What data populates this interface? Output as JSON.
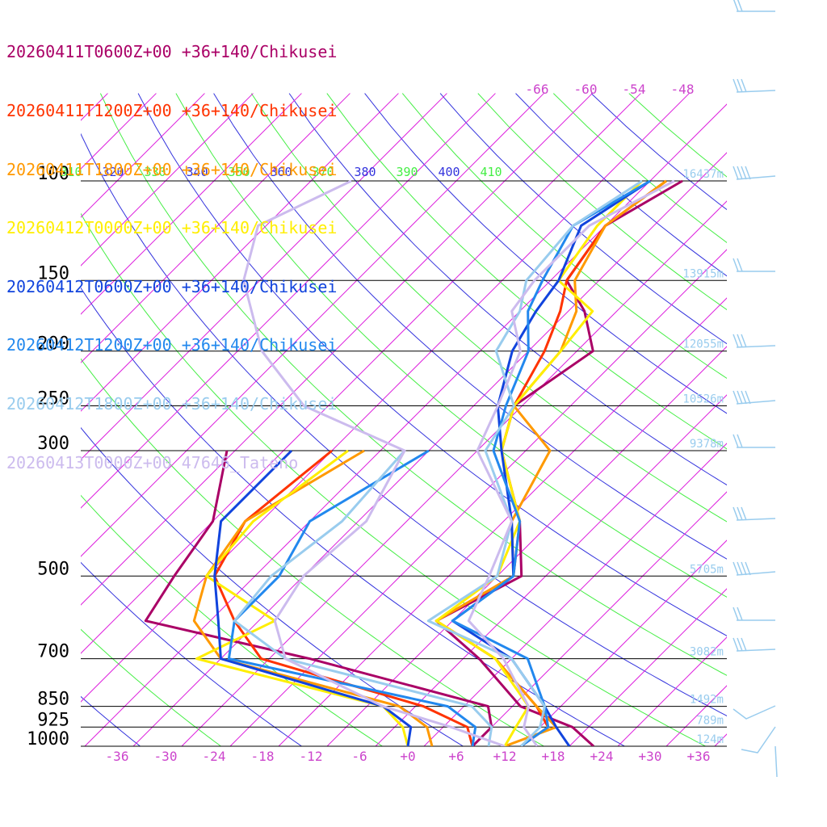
{
  "chart_data": {
    "type": "line",
    "title": "",
    "xlabel": "",
    "ylabel": "",
    "ylim": [
      1000,
      100
    ],
    "xlim": [
      -40,
      40
    ],
    "y_log_scale": true,
    "pressure_ticks": [
      "100",
      "150",
      "200",
      "250",
      "300",
      "500",
      "700",
      "850",
      "925",
      "1000"
    ],
    "temp_ticks": [
      "-36",
      "-30",
      "-24",
      "-18",
      "-12",
      "-6",
      "+0",
      "+6",
      "+12",
      "+18",
      "+24",
      "+30",
      "+36"
    ],
    "height_labels": [
      {
        "p": 100,
        "label": "16437m"
      },
      {
        "p": 150,
        "label": "13915m"
      },
      {
        "p": 200,
        "label": "12055m"
      },
      {
        "p": 250,
        "label": "10526m"
      },
      {
        "p": 300,
        "label": "9378m"
      },
      {
        "p": 500,
        "label": "5705m"
      },
      {
        "p": 700,
        "label": "3082m"
      },
      {
        "p": 850,
        "label": "1492m"
      },
      {
        "p": 925,
        "label": "789m"
      },
      {
        "p": 1000,
        "label": "124m"
      }
    ],
    "isotherm_labels": [
      "-66",
      "-60",
      "-54",
      "-48"
    ],
    "theta_labels": [
      "310",
      "320",
      "330",
      "340",
      "350",
      "360",
      "370",
      "380",
      "390",
      "400",
      "410"
    ],
    "series": [
      {
        "name": "20260411T0600Z+00 +36+140/Chikusei",
        "color": "#aa0066",
        "temperature": [
          [
            1000,
            23
          ],
          [
            925,
            18
          ],
          [
            850,
            9
          ],
          [
            700,
            -2
          ],
          [
            600,
            -12
          ],
          [
            500,
            -7
          ],
          [
            400,
            -14
          ],
          [
            300,
            -25
          ],
          [
            250,
            -29
          ],
          [
            200,
            -26
          ],
          [
            170,
            -32
          ],
          [
            150,
            -38
          ],
          [
            120,
            -40
          ],
          [
            100,
            -36
          ]
        ],
        "dewpoint": [
          [
            1000,
            8
          ],
          [
            925,
            8
          ],
          [
            850,
            5
          ],
          [
            700,
            -23
          ],
          [
            600,
            -48
          ],
          [
            500,
            -50
          ],
          [
            400,
            -52
          ],
          [
            300,
            -59
          ]
        ]
      },
      {
        "name": "20260411T1200Z+00 +36+140/Chikusei",
        "color": "#ff3300",
        "temperature": [
          [
            1000,
            14
          ],
          [
            925,
            15
          ],
          [
            850,
            11
          ],
          [
            700,
            0
          ],
          [
            600,
            -12
          ],
          [
            500,
            -8
          ],
          [
            400,
            -14
          ],
          [
            300,
            -25
          ],
          [
            250,
            -29
          ],
          [
            200,
            -32
          ],
          [
            170,
            -35
          ],
          [
            150,
            -38
          ],
          [
            120,
            -40
          ],
          [
            100,
            -38
          ]
        ],
        "dewpoint": [
          [
            1000,
            8
          ],
          [
            925,
            5
          ],
          [
            850,
            -3
          ],
          [
            700,
            -29
          ],
          [
            600,
            -37
          ],
          [
            500,
            -45
          ],
          [
            400,
            -48
          ],
          [
            300,
            -46
          ]
        ]
      },
      {
        "name": "20260411T1800Z+00 +36+140/Chikusei",
        "color": "#ff9900",
        "temperature": [
          [
            1000,
            12
          ],
          [
            925,
            16
          ],
          [
            850,
            11
          ],
          [
            700,
            0
          ],
          [
            600,
            -12
          ],
          [
            500,
            -8
          ],
          [
            400,
            -15
          ],
          [
            300,
            -19
          ],
          [
            250,
            -29
          ],
          [
            200,
            -30
          ],
          [
            170,
            -33
          ],
          [
            150,
            -37
          ],
          [
            120,
            -40
          ],
          [
            100,
            -38
          ]
        ],
        "dewpoint": [
          [
            1000,
            3
          ],
          [
            925,
            0
          ],
          [
            850,
            -6
          ],
          [
            700,
            -34
          ],
          [
            600,
            -42
          ],
          [
            500,
            -46
          ],
          [
            400,
            -48
          ],
          [
            300,
            -42
          ]
        ]
      },
      {
        "name": "20260412T0000Z+00 +36+140/Chikusei",
        "color": "#ffee00",
        "temperature": [
          [
            1000,
            12
          ],
          [
            925,
            11
          ],
          [
            850,
            10
          ],
          [
            700,
            0
          ],
          [
            600,
            -12
          ],
          [
            500,
            -10
          ],
          [
            400,
            -14
          ],
          [
            300,
            -25
          ],
          [
            250,
            -29
          ],
          [
            200,
            -30
          ],
          [
            170,
            -31
          ],
          [
            150,
            -39
          ],
          [
            120,
            -41
          ],
          [
            100,
            -41
          ]
        ],
        "dewpoint": [
          [
            1000,
            0
          ],
          [
            925,
            -3
          ],
          [
            850,
            -8
          ],
          [
            700,
            -37
          ],
          [
            600,
            -32
          ],
          [
            500,
            -46
          ],
          [
            400,
            -47
          ],
          [
            300,
            -44
          ]
        ]
      },
      {
        "name": "20260412T0600Z+00 +36+140/Chikusei",
        "color": "#1144dd",
        "temperature": [
          [
            1000,
            20
          ],
          [
            925,
            16
          ],
          [
            850,
            12
          ],
          [
            700,
            2
          ],
          [
            600,
            -10
          ],
          [
            500,
            -8
          ],
          [
            400,
            -15
          ],
          [
            300,
            -25
          ],
          [
            250,
            -31
          ],
          [
            200,
            -36
          ],
          [
            170,
            -38
          ],
          [
            150,
            -39
          ],
          [
            120,
            -43
          ],
          [
            100,
            -40
          ]
        ],
        "dewpoint": [
          [
            1000,
            0
          ],
          [
            925,
            -2
          ],
          [
            850,
            -8
          ],
          [
            700,
            -34
          ],
          [
            600,
            -39
          ],
          [
            500,
            -45
          ],
          [
            400,
            -51
          ],
          [
            300,
            -51
          ]
        ]
      },
      {
        "name": "20260412T1200Z+00 +36+140/Chikusei",
        "color": "#2288ee",
        "temperature": [
          [
            1000,
            14
          ],
          [
            925,
            15
          ],
          [
            850,
            12
          ],
          [
            700,
            4
          ],
          [
            600,
            -10
          ],
          [
            500,
            -8
          ],
          [
            400,
            -14
          ],
          [
            300,
            -26
          ],
          [
            250,
            -30
          ],
          [
            200,
            -34
          ],
          [
            170,
            -39
          ],
          [
            150,
            -41
          ],
          [
            120,
            -44
          ],
          [
            100,
            -40
          ]
        ],
        "dewpoint": [
          [
            1000,
            8
          ],
          [
            925,
            6
          ],
          [
            850,
            0
          ],
          [
            700,
            -33
          ],
          [
            600,
            -37
          ],
          [
            500,
            -37
          ],
          [
            400,
            -40
          ],
          [
            300,
            -34
          ]
        ]
      },
      {
        "name": "20260412T1800Z+00 +36+140/Chikusei",
        "color": "#99ccee",
        "temperature": [
          [
            1000,
            14
          ],
          [
            925,
            14
          ],
          [
            850,
            12
          ],
          [
            700,
            2
          ],
          [
            600,
            -13
          ],
          [
            500,
            -10
          ],
          [
            400,
            -15
          ],
          [
            300,
            -27
          ],
          [
            250,
            -29
          ],
          [
            200,
            -38
          ],
          [
            170,
            -40
          ],
          [
            150,
            -43
          ],
          [
            120,
            -44
          ],
          [
            100,
            -41
          ]
        ],
        "dewpoint": [
          [
            1000,
            10
          ],
          [
            925,
            8
          ],
          [
            850,
            3
          ],
          [
            700,
            -26
          ],
          [
            600,
            -37
          ],
          [
            500,
            -38
          ],
          [
            400,
            -36
          ],
          [
            300,
            -37
          ]
        ]
      },
      {
        "name": "20260413T0000Z+00 47646_Tateno",
        "color": "#ccbbee",
        "temperature": [
          [
            1000,
            16
          ],
          [
            925,
            12
          ],
          [
            850,
            10
          ],
          [
            700,
            1
          ],
          [
            600,
            -8
          ],
          [
            500,
            -11
          ],
          [
            400,
            -15
          ],
          [
            300,
            -28
          ],
          [
            250,
            -31
          ],
          [
            200,
            -35
          ],
          [
            170,
            -41
          ],
          [
            150,
            -42
          ],
          [
            120,
            -42
          ],
          [
            100,
            -37
          ]
        ],
        "dewpoint": [
          [
            1000,
            12
          ],
          [
            925,
            3
          ],
          [
            850,
            -8
          ],
          [
            700,
            -26
          ],
          [
            600,
            -32
          ],
          [
            500,
            -34
          ],
          [
            400,
            -33
          ],
          [
            300,
            -37
          ],
          [
            250,
            -55
          ],
          [
            200,
            -67
          ],
          [
            150,
            -78
          ],
          [
            120,
            -83
          ],
          [
            100,
            -77
          ]
        ]
      }
    ]
  }
}
